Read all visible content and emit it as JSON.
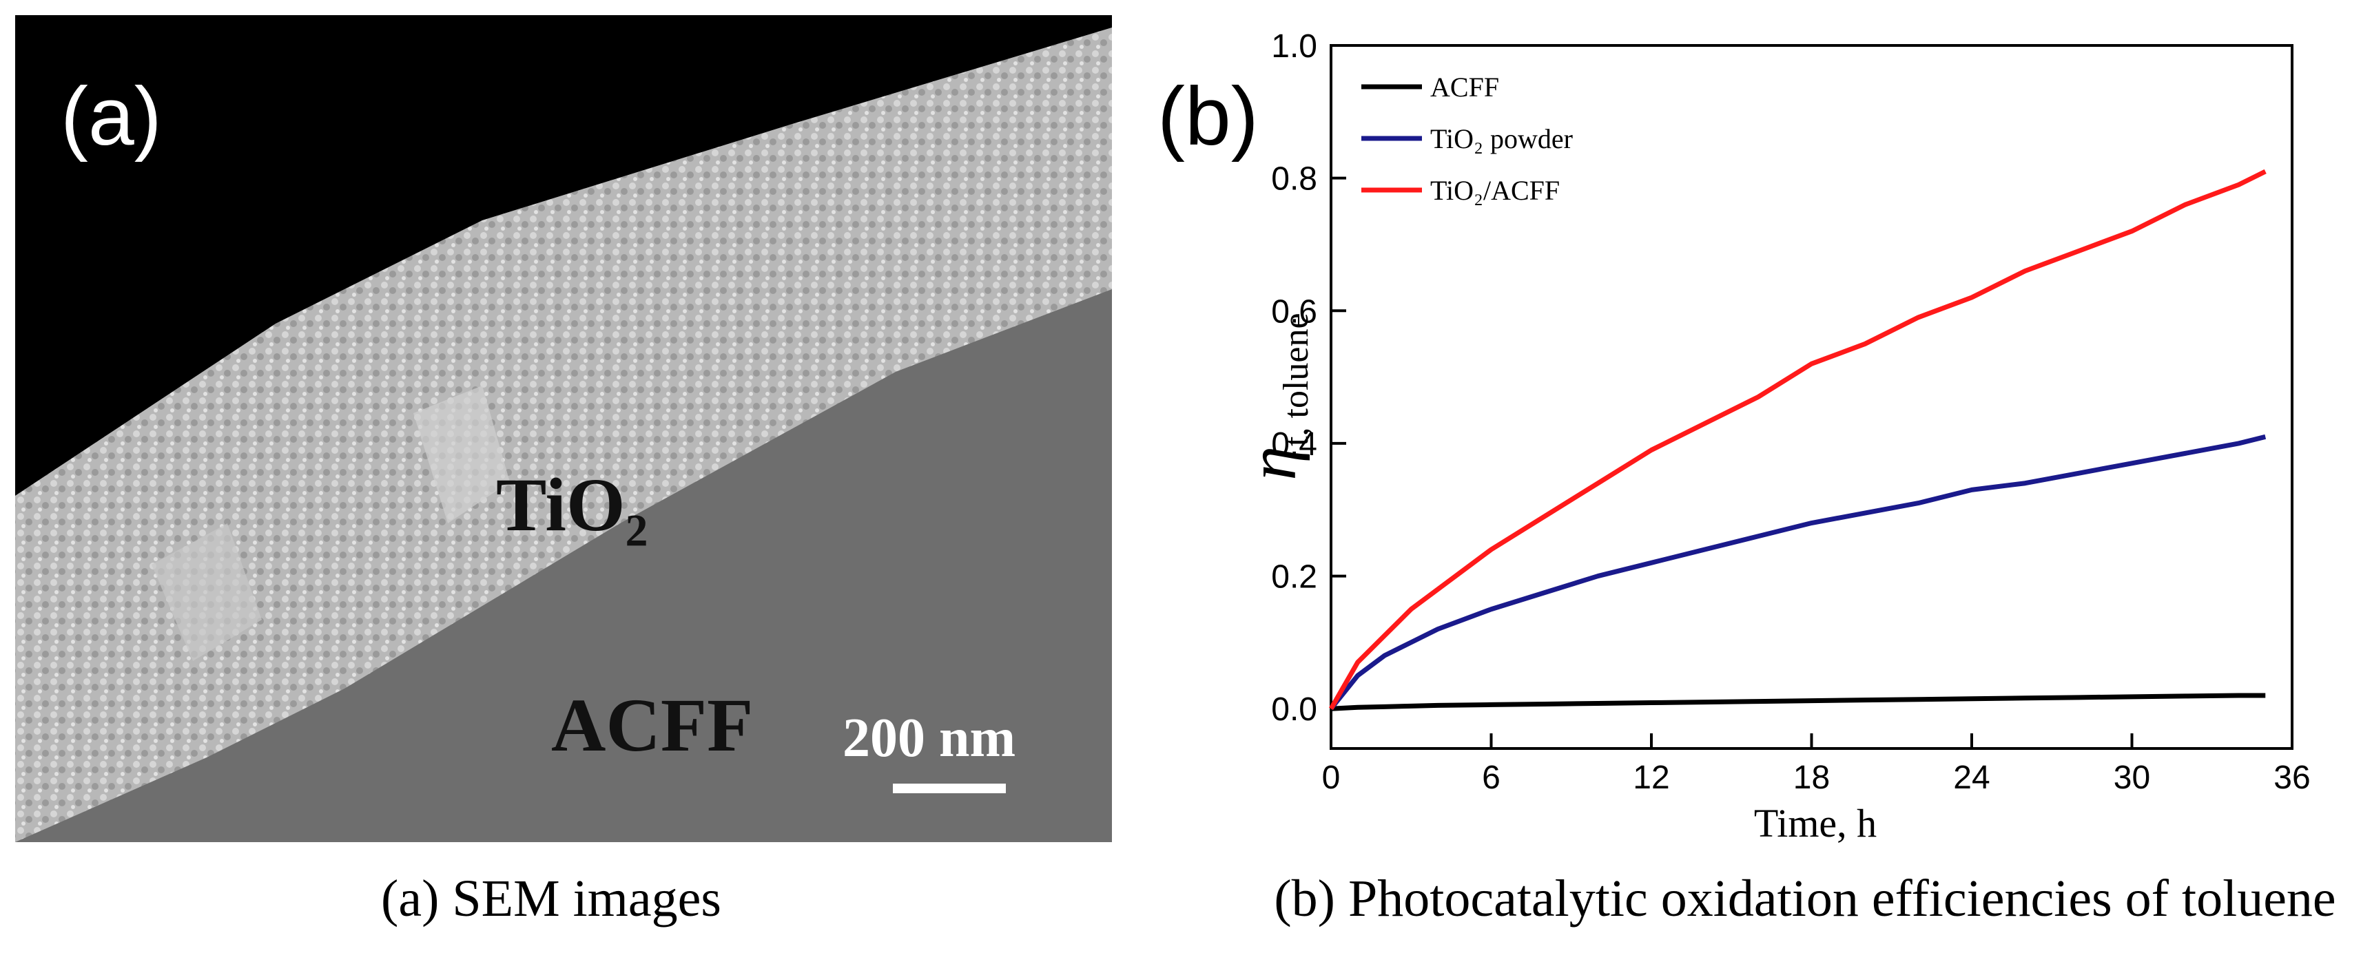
{
  "figure_a": {
    "panel_label": "(a)",
    "layer_top": "TiO₂",
    "layer_bottom": "ACFF",
    "scale_bar": "200 nm"
  },
  "chart_data": {
    "type": "line",
    "panel_label": "(b)",
    "x_label": "Time, h",
    "y_label": "η",
    "y_label_sub": "t, toluene",
    "x": [
      0,
      1,
      2,
      3,
      4,
      6,
      8,
      10,
      12,
      14,
      16,
      18,
      20,
      22,
      24,
      26,
      28,
      30,
      32,
      34,
      35
    ],
    "series": [
      {
        "name": "ACFF",
        "color": "#000000",
        "values": [
          0,
          0.002,
          0.003,
          0.004,
          0.005,
          0.006,
          0.007,
          0.008,
          0.009,
          0.01,
          0.011,
          0.012,
          0.013,
          0.014,
          0.015,
          0.016,
          0.017,
          0.018,
          0.019,
          0.02,
          0.02
        ]
      },
      {
        "name": "TiO₂ powder",
        "color": "#1a1a8c",
        "values": [
          0,
          0.05,
          0.08,
          0.1,
          0.12,
          0.15,
          0.175,
          0.2,
          0.22,
          0.24,
          0.26,
          0.28,
          0.295,
          0.31,
          0.33,
          0.34,
          0.355,
          0.37,
          0.385,
          0.4,
          0.41
        ]
      },
      {
        "name": "TiO₂/ACFF",
        "color": "#ff1a1a",
        "values": [
          0,
          0.07,
          0.11,
          0.15,
          0.18,
          0.24,
          0.29,
          0.34,
          0.39,
          0.43,
          0.47,
          0.52,
          0.55,
          0.59,
          0.62,
          0.66,
          0.69,
          0.72,
          0.76,
          0.79,
          0.81
        ]
      }
    ],
    "xlim": [
      0,
      36
    ],
    "ylim": [
      -0.06,
      1.0
    ],
    "xticks": [
      0,
      6,
      12,
      18,
      24,
      30,
      36
    ],
    "yticks": [
      {
        "value": 0,
        "label": "0.0"
      },
      {
        "value": 0.2,
        "label": "0.2"
      },
      {
        "value": 0.4,
        "label": "0.4"
      },
      {
        "value": 0.6,
        "label": "0.6"
      },
      {
        "value": 0.8,
        "label": "0.8"
      },
      {
        "value": 1.0,
        "label": "1.0"
      }
    ],
    "legend": "upper left"
  },
  "captions": [
    {
      "label": "(a)",
      "text": "SEM images"
    },
    {
      "label": "(b)",
      "text": "Photocatalytic oxidation efficiencies of toluene"
    }
  ]
}
